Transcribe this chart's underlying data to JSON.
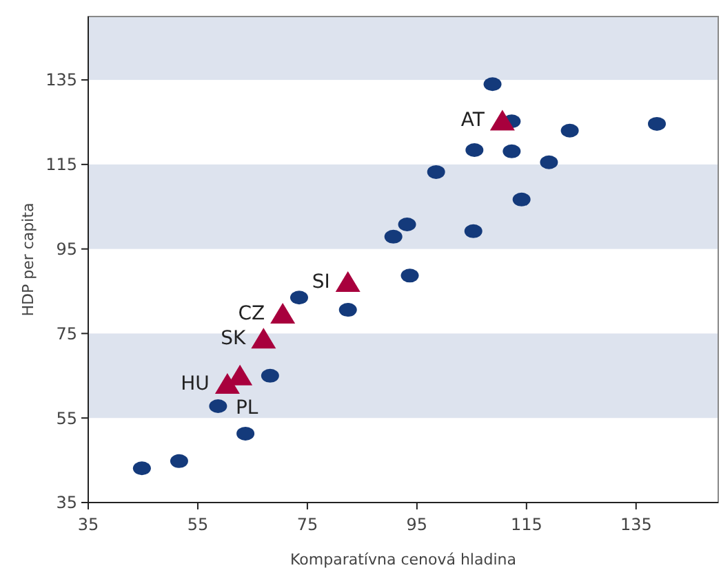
{
  "chart_data": {
    "type": "scatter",
    "xlabel": "Komparatívna cenová hladina",
    "ylabel": "HDP per capita",
    "xlim": [
      35,
      150
    ],
    "ylim": [
      35,
      150
    ],
    "xticks": [
      35,
      55,
      75,
      95,
      115,
      135
    ],
    "yticks": [
      35,
      55,
      75,
      95,
      115,
      135
    ],
    "grid": false,
    "bands": [
      {
        "axis": "y",
        "from": 55,
        "to": 75,
        "color": "#dde3ee"
      },
      {
        "axis": "y",
        "from": 95,
        "to": 115,
        "color": "#dde3ee"
      },
      {
        "axis": "y",
        "from": 135,
        "to": 150,
        "color": "#dde3ee"
      }
    ],
    "series": [
      {
        "color": "#143a7b",
        "marker": "circle",
        "x": [
          44.8,
          51.6,
          63.7,
          58.7,
          68.2,
          73.5,
          82.4,
          90.7,
          93.2,
          93.7,
          98.5,
          105.3,
          105.5,
          108.8,
          112.3,
          112.3,
          119.1,
          114.1,
          122.9,
          138.8
        ],
        "values": [
          43.1,
          44.8,
          51.3,
          57.8,
          65,
          83.5,
          80.6,
          97.9,
          100.8,
          88.7,
          113.2,
          99.2,
          118.4,
          134,
          125.2,
          118.1,
          115.5,
          106.7,
          123,
          124.6
        ]
      },
      {
        "color": "#a8003d",
        "marker": "triangle",
        "x": [
          110.6,
          82.4,
          70.5,
          67,
          62.7,
          60.4
        ],
        "values": [
          125,
          86.8,
          79.3,
          73.4,
          64.7,
          62.7
        ]
      }
    ],
    "annotations": [
      {
        "text": "AT",
        "x": 110.6,
        "y": 125
      },
      {
        "text": "SI",
        "x": 82.4,
        "y": 86.8
      },
      {
        "text": "CZ",
        "x": 70.5,
        "y": 79.3
      },
      {
        "text": "SK",
        "x": 67,
        "y": 73.4
      },
      {
        "text": "HU",
        "x": 60.4,
        "y": 62.7
      },
      {
        "text": "PL",
        "x": 62.7,
        "y": 64.7
      }
    ]
  }
}
